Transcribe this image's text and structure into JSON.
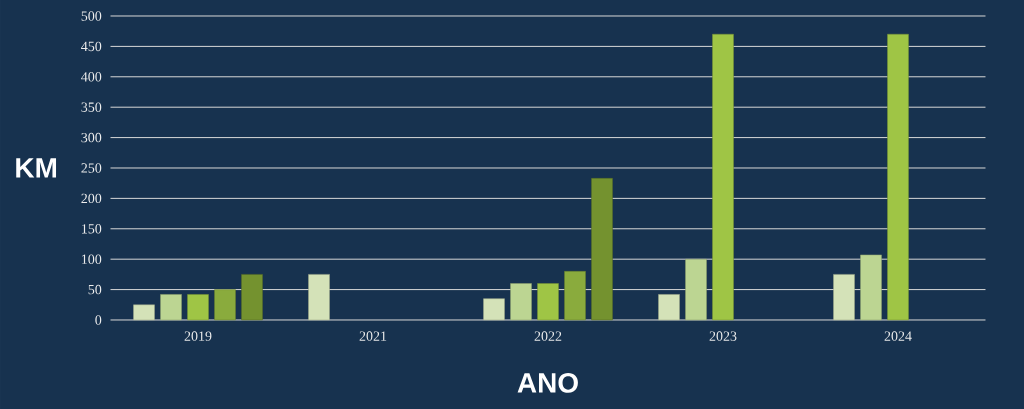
{
  "chart_data": {
    "type": "bar",
    "xlabel": "ANO",
    "ylabel": "KM",
    "categories": [
      "2019",
      "2021",
      "2022",
      "2023",
      "2024"
    ],
    "series": [
      {
        "color": "#d4e2b8",
        "values": [
          25,
          75,
          35,
          42,
          75
        ]
      },
      {
        "color": "#bcd592",
        "values": [
          42,
          null,
          60,
          100,
          107
        ]
      },
      {
        "color": "#9fc545",
        "values": [
          42,
          null,
          60,
          470,
          470
        ]
      },
      {
        "color": "#8aab3d",
        "values": [
          50,
          null,
          80,
          null,
          null
        ]
      },
      {
        "color": "#74922f",
        "values": [
          75,
          null,
          233,
          null,
          null
        ]
      }
    ],
    "ylim": [
      0,
      500
    ],
    "yticks": [
      0,
      50,
      100,
      150,
      200,
      250,
      300,
      350,
      400,
      450,
      500
    ],
    "grid": "y"
  }
}
